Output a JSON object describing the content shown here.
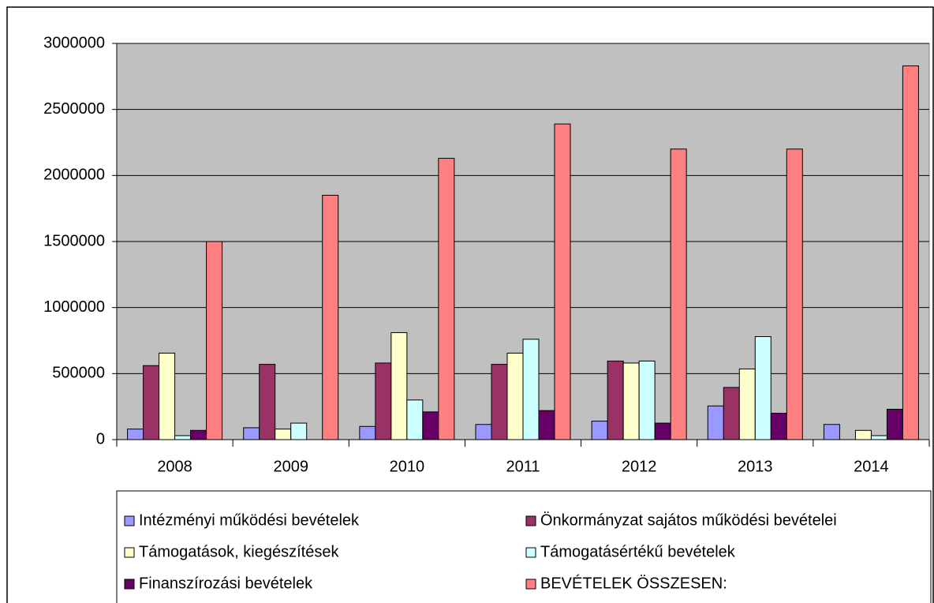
{
  "chart_data": {
    "type": "bar",
    "categories": [
      "2008",
      "2009",
      "2010",
      "2011",
      "2012",
      "2013",
      "2014"
    ],
    "series": [
      {
        "name": "Intézményi működési bevételek",
        "color": "#9999ff",
        "values": [
          80000,
          90000,
          100000,
          115000,
          140000,
          255000,
          115000
        ]
      },
      {
        "name": "Önkormányzat sajátos működési bevételei",
        "color": "#993366",
        "values": [
          560000,
          570000,
          580000,
          570000,
          595000,
          395000,
          0
        ]
      },
      {
        "name": "Támogatások, kiegészítések",
        "color": "#ffffcc",
        "values": [
          655000,
          80000,
          810000,
          655000,
          580000,
          535000,
          70000
        ]
      },
      {
        "name": "Támogatásértékű bevételek",
        "color": "#ccffff",
        "values": [
          30000,
          125000,
          300000,
          760000,
          595000,
          780000,
          30000
        ]
      },
      {
        "name": "Finanszírozási bevételek",
        "color": "#660066",
        "values": [
          70000,
          0,
          210000,
          220000,
          125000,
          200000,
          230000
        ]
      },
      {
        "name": "BEVÉTELEK ÖSSZESEN:",
        "color": "#ff8080",
        "values": [
          1500000,
          1850000,
          2130000,
          2390000,
          2200000,
          2200000,
          2830000
        ]
      }
    ],
    "ylim": [
      0,
      3000000
    ],
    "yticks": [
      0,
      500000,
      1000000,
      1500000,
      2000000,
      2500000,
      3000000
    ],
    "grid": true,
    "plot_background": "#c0c0c0",
    "legend": "bottom"
  }
}
